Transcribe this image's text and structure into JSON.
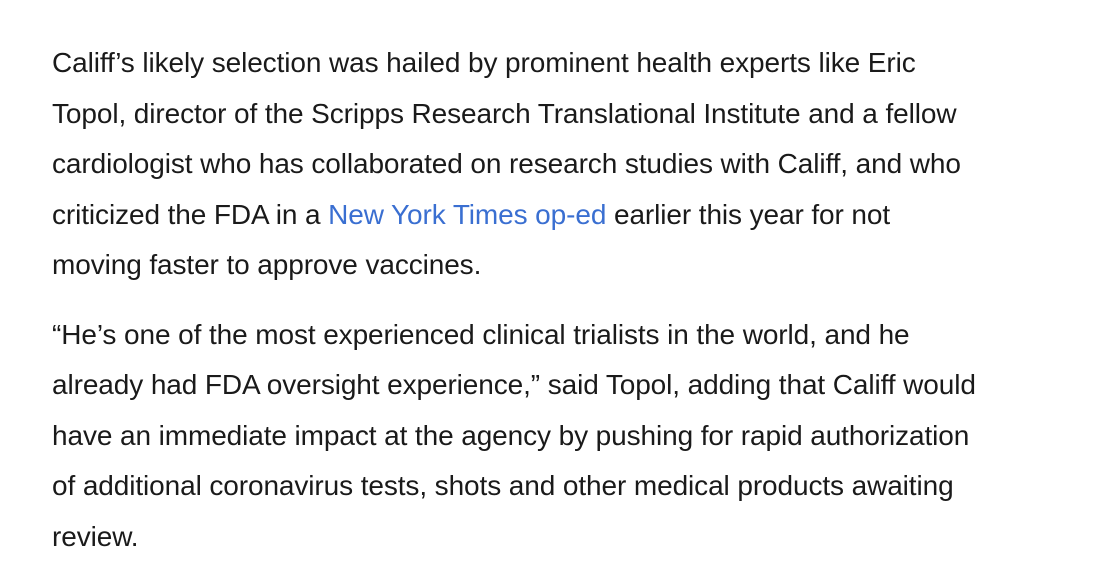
{
  "article": {
    "paragraphs": [
      {
        "lines": [
          {
            "text": "Califf’s likely selection was hailed by prominent health experts like Eric"
          },
          {
            "text": "Topol, director of the Scripps Research Translational Institute and a fellow"
          },
          {
            "text": "cardiologist who has collaborated on research studies with Califf, and who"
          },
          {
            "before": "criticized the FDA in a ",
            "link": "New York Times op-ed",
            "after": " earlier this year for not"
          },
          {
            "text": "moving faster to approve vaccines."
          }
        ]
      },
      {
        "lines": [
          {
            "text": "“He’s one of the most experienced clinical trialists in the world, and he"
          },
          {
            "text": "already had FDA oversight experience,” said Topol, adding that Califf would"
          },
          {
            "text": "have an immediate impact at the agency by pushing for rapid authorization"
          },
          {
            "text": "of additional coronavirus tests, shots and other medical products awaiting"
          },
          {
            "text": "review."
          }
        ]
      }
    ]
  },
  "colors": {
    "text": "#1a1a1a",
    "link": "#3a6fd1",
    "background": "#ffffff"
  }
}
